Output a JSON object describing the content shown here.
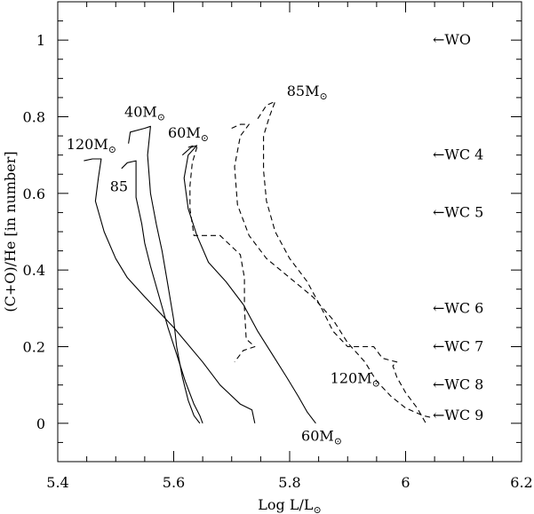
{
  "chart_data": {
    "type": "line",
    "xlabel": "Log L/L⊙",
    "ylabel": "(C+O)/He [in number]",
    "xlim": [
      5.4,
      6.2
    ],
    "ylim": [
      -0.1,
      1.1
    ],
    "xticks": [
      "5.4",
      "5.6",
      "5.8",
      "6",
      "6.2"
    ],
    "yticks": [
      "0",
      "0.2",
      "0.4",
      "0.6",
      "0.8",
      "1"
    ],
    "grid": false,
    "series": [
      {
        "name": "120M⊙",
        "style": "solid",
        "points": [
          [
            5.445,
            0.685
          ],
          [
            5.46,
            0.69
          ],
          [
            5.475,
            0.69
          ],
          [
            5.47,
            0.64
          ],
          [
            5.465,
            0.58
          ],
          [
            5.48,
            0.5
          ],
          [
            5.5,
            0.43
          ],
          [
            5.52,
            0.38
          ],
          [
            5.55,
            0.33
          ],
          [
            5.6,
            0.25
          ],
          [
            5.65,
            0.16
          ],
          [
            5.68,
            0.1
          ],
          [
            5.715,
            0.05
          ],
          [
            5.735,
            0.035
          ],
          [
            5.74,
            0.0
          ]
        ]
      },
      {
        "name": "85",
        "style": "solid",
        "points": [
          [
            5.51,
            0.665
          ],
          [
            5.52,
            0.68
          ],
          [
            5.535,
            0.685
          ],
          [
            5.535,
            0.64
          ],
          [
            5.535,
            0.59
          ],
          [
            5.545,
            0.52
          ],
          [
            5.55,
            0.47
          ],
          [
            5.56,
            0.41
          ],
          [
            5.575,
            0.33
          ],
          [
            5.59,
            0.25
          ],
          [
            5.605,
            0.18
          ],
          [
            5.62,
            0.11
          ],
          [
            5.635,
            0.05
          ],
          [
            5.645,
            0.02
          ],
          [
            5.65,
            0.0
          ]
        ]
      },
      {
        "name": "40M⊙",
        "style": "solid",
        "points": [
          [
            5.522,
            0.73
          ],
          [
            5.525,
            0.76
          ],
          [
            5.55,
            0.77
          ],
          [
            5.56,
            0.775
          ],
          [
            5.555,
            0.7
          ],
          [
            5.56,
            0.6
          ],
          [
            5.57,
            0.52
          ],
          [
            5.58,
            0.45
          ],
          [
            5.59,
            0.36
          ],
          [
            5.6,
            0.27
          ],
          [
            5.605,
            0.2
          ],
          [
            5.615,
            0.12
          ],
          [
            5.625,
            0.06
          ],
          [
            5.635,
            0.02
          ],
          [
            5.645,
            0.0
          ]
        ]
      },
      {
        "name": "60M⊙",
        "style": "solid",
        "points": [
          [
            5.615,
            0.7
          ],
          [
            5.63,
            0.72
          ],
          [
            5.64,
            0.725
          ],
          [
            5.625,
            0.7
          ],
          [
            5.618,
            0.64
          ],
          [
            5.625,
            0.56
          ],
          [
            5.64,
            0.49
          ],
          [
            5.66,
            0.42
          ],
          [
            5.69,
            0.37
          ],
          [
            5.72,
            0.31
          ],
          [
            5.745,
            0.24
          ],
          [
            5.77,
            0.18
          ],
          [
            5.795,
            0.12
          ],
          [
            5.815,
            0.07
          ],
          [
            5.83,
            0.03
          ],
          [
            5.845,
            0.0
          ]
        ]
      },
      {
        "name": "60M⊙",
        "style": "dashed",
        "points": [
          [
            5.625,
            0.72
          ],
          [
            5.635,
            0.725
          ],
          [
            5.64,
            0.72
          ],
          [
            5.632,
            0.68
          ],
          [
            5.628,
            0.62
          ],
          [
            5.628,
            0.56
          ],
          [
            5.635,
            0.49
          ],
          [
            5.68,
            0.49
          ],
          [
            5.715,
            0.44
          ],
          [
            5.722,
            0.38
          ],
          [
            5.722,
            0.3
          ],
          [
            5.725,
            0.22
          ],
          [
            5.74,
            0.2
          ],
          [
            5.72,
            0.19
          ],
          [
            5.705,
            0.16
          ]
        ]
      },
      {
        "name": "120M⊙",
        "style": "dashed",
        "points": [
          [
            5.7,
            0.77
          ],
          [
            5.715,
            0.78
          ],
          [
            5.73,
            0.78
          ],
          [
            5.715,
            0.75
          ],
          [
            5.705,
            0.67
          ],
          [
            5.71,
            0.57
          ],
          [
            5.73,
            0.49
          ],
          [
            5.76,
            0.43
          ],
          [
            5.8,
            0.38
          ],
          [
            5.84,
            0.33
          ],
          [
            5.875,
            0.27
          ],
          [
            5.9,
            0.21
          ],
          [
            5.93,
            0.16
          ],
          [
            5.95,
            0.11
          ],
          [
            5.975,
            0.07
          ],
          [
            6.0,
            0.04
          ],
          [
            6.03,
            0.02
          ],
          [
            6.045,
            0.015
          ]
        ]
      },
      {
        "name": "85M⊙",
        "style": "dashed",
        "points": [
          [
            5.745,
            0.795
          ],
          [
            5.76,
            0.83
          ],
          [
            5.775,
            0.84
          ],
          [
            5.765,
            0.8
          ],
          [
            5.755,
            0.75
          ],
          [
            5.755,
            0.66
          ],
          [
            5.76,
            0.58
          ],
          [
            5.775,
            0.5
          ],
          [
            5.8,
            0.43
          ],
          [
            5.83,
            0.37
          ],
          [
            5.855,
            0.3
          ],
          [
            5.875,
            0.24
          ],
          [
            5.9,
            0.2
          ],
          [
            5.945,
            0.2
          ],
          [
            5.96,
            0.17
          ],
          [
            5.985,
            0.16
          ],
          [
            5.978,
            0.15
          ],
          [
            5.985,
            0.12
          ],
          [
            6.0,
            0.08
          ],
          [
            6.02,
            0.04
          ],
          [
            6.035,
            0.0
          ]
        ]
      }
    ],
    "annotations": [
      {
        "text": "120M⊙",
        "x": 5.415,
        "y": 0.715
      },
      {
        "text": "85",
        "x": 5.49,
        "y": 0.605
      },
      {
        "text": "40M⊙",
        "x": 5.515,
        "y": 0.8
      },
      {
        "text": "60M⊙",
        "x": 5.59,
        "y": 0.745
      },
      {
        "text": "85M⊙",
        "x": 5.795,
        "y": 0.855
      },
      {
        "text": "120M⊙",
        "x": 5.87,
        "y": 0.105
      },
      {
        "text": "60M⊙",
        "x": 5.82,
        "y": -0.045
      }
    ],
    "spectral_markers": [
      {
        "label": "←WO",
        "y": 1.0
      },
      {
        "label": "←WC 4",
        "y": 0.7
      },
      {
        "label": "←WC 5",
        "y": 0.55
      },
      {
        "label": "←WC 6",
        "y": 0.3
      },
      {
        "label": "←WC 7",
        "y": 0.2
      },
      {
        "label": "←WC 8",
        "y": 0.1
      },
      {
        "label": "←WC 9",
        "y": 0.02
      }
    ]
  }
}
